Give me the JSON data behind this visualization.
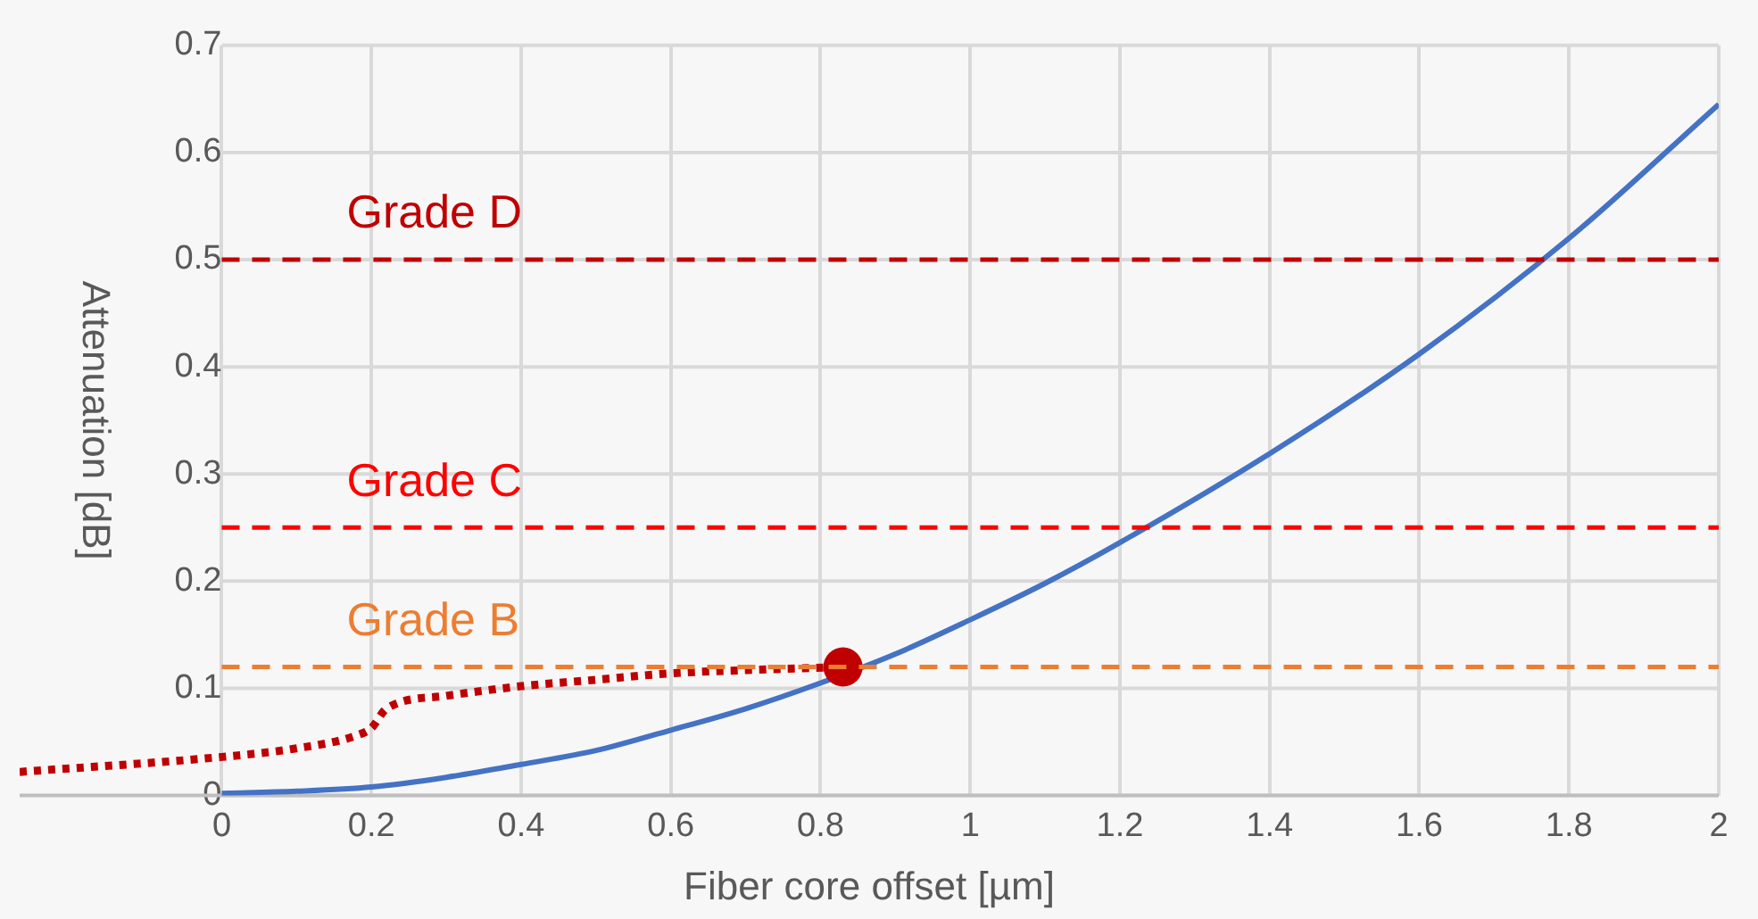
{
  "chart_data": {
    "type": "line",
    "xlabel": "Fiber core offset [µm]",
    "ylabel": "Attenuation [dB]",
    "xlim": [
      -0.27,
      2
    ],
    "xticks": [
      0,
      0.2,
      0.4,
      0.6,
      0.8,
      1,
      1.2,
      1.4,
      1.6,
      1.8,
      2
    ],
    "ylim": [
      0,
      0.7
    ],
    "yticks": [
      0,
      0.1,
      0.2,
      0.3,
      0.4,
      0.5,
      0.6,
      0.7
    ],
    "grid": true,
    "legend": false,
    "marker": "none",
    "series": [
      {
        "color": "#4472c4",
        "line_style": "solid",
        "x": [
          0,
          0.1,
          0.2,
          0.3,
          0.4,
          0.5,
          0.6,
          0.7,
          0.8,
          0.9,
          1,
          1.1,
          1.2,
          1.4,
          1.6,
          1.8,
          2
        ],
        "values": [
          0.002,
          0.004,
          0.008,
          0.017,
          0.029,
          0.042,
          0.061,
          0.081,
          0.105,
          0.132,
          0.164,
          0.198,
          0.236,
          0.319,
          0.412,
          0.52,
          0.645
        ]
      },
      {
        "color": "#c00000",
        "line_style": "dotted",
        "x": [
          -0.27,
          0,
          0.1,
          0.18,
          0.2,
          0.22,
          0.3,
          0.4,
          0.5,
          0.6,
          0.7,
          0.83
        ],
        "values": [
          0.022,
          0.036,
          0.044,
          0.056,
          0.063,
          0.081,
          0.093,
          0.102,
          0.108,
          0.114,
          0.117,
          0.12
        ]
      },
      {
        "type": "scatter",
        "color": "#c00000",
        "marker": "circle",
        "x": [
          0.83
        ],
        "values": [
          0.12
        ]
      }
    ],
    "ref_lines": [
      {
        "axis": "y",
        "value": 0.5,
        "label": "Grade D",
        "color": "#c00000",
        "line_style": "dashed"
      },
      {
        "axis": "y",
        "value": 0.25,
        "label": "Grade C",
        "color": "#ff0000",
        "line_style": "dashed"
      },
      {
        "axis": "y",
        "value": 0.12,
        "label": "Grade B",
        "color": "#ed7d31",
        "line_style": "dashed"
      }
    ]
  }
}
